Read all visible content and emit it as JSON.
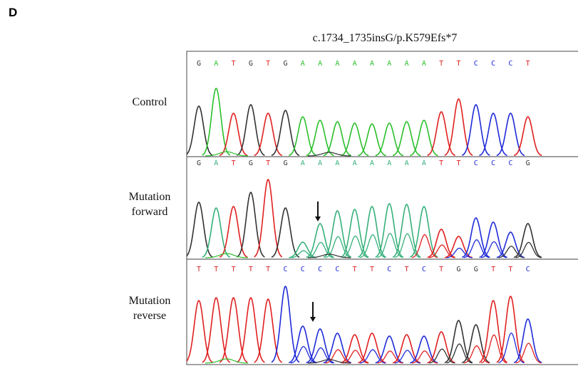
{
  "panel_letter": "D",
  "title": "c.1734_1735insG/p.K579Efs*7",
  "colors": {
    "A": "#2bbf2b",
    "C": "#1f2bd8",
    "G": "#333333",
    "T": "#e02020",
    "mutA": "#36b07a",
    "frame": "#666666"
  },
  "tracks": [
    {
      "label": "Control",
      "label_lines": [
        "Control"
      ],
      "sequence": [
        "G",
        "A",
        "T",
        "G",
        "T",
        "G",
        "A",
        "A",
        "A",
        "A",
        "A",
        "A",
        "A",
        "A",
        "T",
        "T",
        "C",
        "C",
        "C",
        "T"
      ],
      "arrow": false
    },
    {
      "label": "Mutation forward",
      "label_lines": [
        "Mutation",
        "forward"
      ],
      "sequence": [
        "G",
        "A",
        "T",
        "G",
        "T",
        "G",
        "A",
        "A",
        "A",
        "A",
        "A",
        "A",
        "A",
        "A",
        "T",
        "T",
        "C",
        "C",
        "C",
        "G"
      ],
      "arrow": true
    },
    {
      "label": "Mutation reverse",
      "label_lines": [
        "Mutation",
        "reverse"
      ],
      "sequence": [
        "T",
        "T",
        "T",
        "T",
        "T",
        "C",
        "C",
        "C",
        "C",
        "T",
        "T",
        "C",
        "T",
        "C",
        "T",
        "G",
        "G",
        "T",
        "T",
        "C"
      ],
      "arrow": true
    }
  ]
}
